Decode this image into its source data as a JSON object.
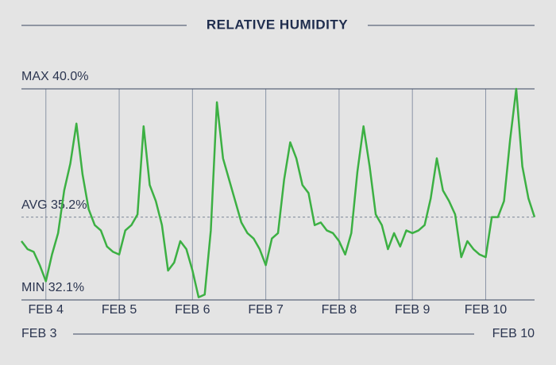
{
  "chart_data": {
    "type": "line",
    "title": "RELATIVE HUMIDITY",
    "color": "#3cb043",
    "range": [
      "FEB 3",
      "FEB 10"
    ],
    "xlim": [
      0,
      84
    ],
    "xticks": [
      {
        "value": 4,
        "label": "FEB 4"
      },
      {
        "value": 16,
        "label": "FEB 5"
      },
      {
        "value": 28,
        "label": "FEB 6"
      },
      {
        "value": 40,
        "label": "FEB 7"
      },
      {
        "value": 52,
        "label": "FEB 8"
      },
      {
        "value": 64,
        "label": "FEB 9"
      },
      {
        "value": 76,
        "label": "FEB 10"
      }
    ],
    "ylim": [
      32.1,
      40.0
    ],
    "yticks": [
      {
        "value": 40.0,
        "label": "MAX 40.0%"
      },
      {
        "value": 35.2,
        "label": "AVG 35.2%"
      },
      {
        "value": 32.1,
        "label": "MIN 32.1%"
      }
    ],
    "values": [
      34.3,
      34.0,
      33.9,
      33.4,
      32.8,
      33.8,
      34.6,
      36.2,
      37.2,
      38.7,
      36.8,
      35.5,
      34.9,
      34.7,
      34.1,
      33.9,
      33.8,
      34.7,
      34.9,
      35.3,
      38.6,
      36.4,
      35.8,
      34.9,
      33.2,
      33.5,
      34.3,
      34.0,
      33.2,
      32.2,
      32.3,
      34.7,
      39.5,
      37.4,
      36.6,
      35.8,
      35.0,
      34.6,
      34.4,
      34.0,
      33.4,
      34.4,
      34.6,
      36.6,
      38.0,
      37.4,
      36.4,
      36.1,
      34.9,
      35.0,
      34.7,
      34.6,
      34.3,
      33.8,
      34.6,
      36.9,
      38.6,
      37.1,
      35.3,
      34.9,
      34.0,
      34.6,
      34.1,
      34.7,
      34.6,
      34.7,
      34.9,
      35.9,
      37.4,
      36.2,
      35.8,
      35.3,
      33.7,
      34.3,
      34.0,
      33.8,
      33.7,
      35.2,
      35.2,
      35.8,
      38.1,
      40.0,
      37.1,
      35.9,
      35.2
    ]
  }
}
